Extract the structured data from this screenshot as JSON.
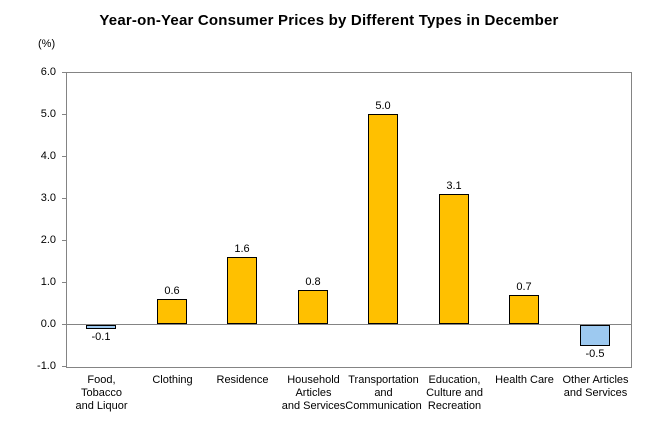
{
  "title": "Year-on-Year Consumer Prices by Different Types in December",
  "unit_label": "(%)",
  "chart_data": {
    "type": "bar",
    "title": "Year-on-Year Consumer Prices by Different Types in December",
    "ylabel": "(%)",
    "xlabel": "",
    "categories": [
      "Food, Tobacco and Liquor",
      "Clothing",
      "Residence",
      "Household Articles and Services",
      "Transportation and Communication",
      "Education, Culture and Recreation",
      "Health Care",
      "Other Articles and Services"
    ],
    "category_lines": [
      [
        "Food,",
        "Tobacco",
        "and Liquor"
      ],
      [
        "Clothing"
      ],
      [
        "Residence"
      ],
      [
        "Household",
        "Articles",
        "and Services"
      ],
      [
        "Transportation",
        "and",
        "Communication"
      ],
      [
        "Education,",
        "Culture and",
        "Recreation"
      ],
      [
        "Health Care"
      ],
      [
        "Other Articles",
        "and Services"
      ]
    ],
    "values": [
      -0.1,
      0.6,
      1.6,
      0.8,
      5.0,
      3.1,
      0.7,
      -0.5
    ],
    "value_labels": [
      "-0.1",
      "0.6",
      "1.6",
      "0.8",
      "5.0",
      "3.1",
      "0.7",
      "-0.5"
    ],
    "ylim": [
      -1.0,
      6.0
    ],
    "yticks": [
      "6.0",
      "5.0",
      "4.0",
      "3.0",
      "2.0",
      "1.0",
      "0.0",
      "-1.0"
    ],
    "grid": "zero-line-only",
    "legend": "none",
    "colors": {
      "positive_bar": "#FFC000",
      "negative_bar": "#9DC9F0",
      "bar_border": "#000000",
      "axis_gray": "#848484"
    }
  }
}
